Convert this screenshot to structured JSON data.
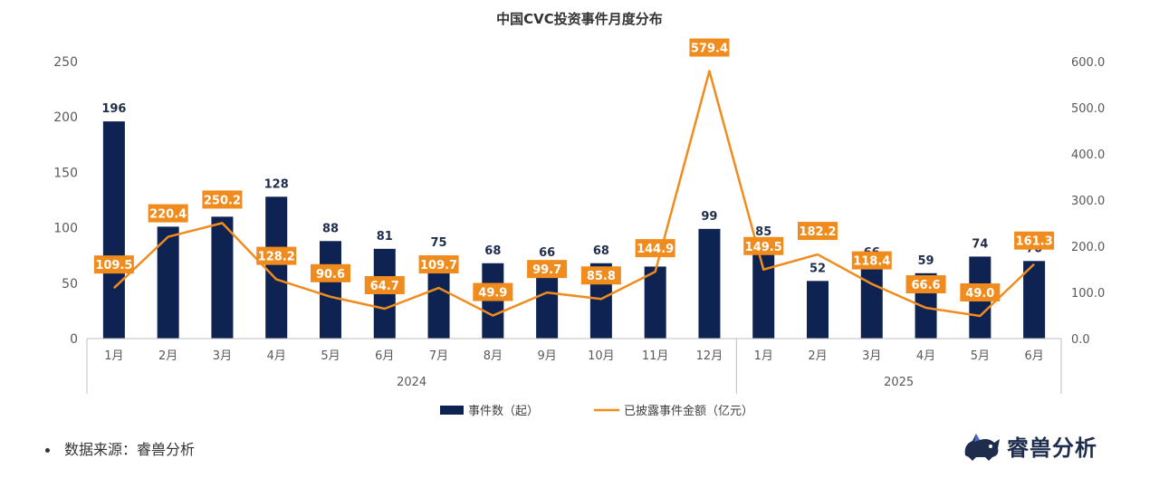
{
  "chart_data": {
    "type": "bar+line",
    "title": "中国CVC投资事件月度分布",
    "categories": [
      "1月",
      "2月",
      "3月",
      "4月",
      "5月",
      "6月",
      "7月",
      "8月",
      "9月",
      "10月",
      "11月",
      "12月",
      "1月",
      "2月",
      "3月",
      "4月",
      "5月",
      "6月"
    ],
    "groups": [
      {
        "label": "2024",
        "start": 0,
        "end": 11
      },
      {
        "label": "2025",
        "start": 12,
        "end": 17
      }
    ],
    "series": [
      {
        "name": "事件数（起）",
        "type": "bar",
        "axis": "left",
        "color": "#0e2352",
        "values": [
          196,
          101,
          110,
          128,
          88,
          81,
          75,
          68,
          66,
          68,
          65,
          99,
          85,
          52,
          66,
          59,
          74,
          70
        ],
        "labels": [
          "196",
          "101",
          "",
          "128",
          "88",
          "81",
          "75",
          "68",
          "66",
          "68",
          "",
          "99",
          "85",
          "52",
          "66",
          "59",
          "74",
          "70"
        ]
      },
      {
        "name": "已披露事件金额（亿元）",
        "type": "line",
        "axis": "right",
        "color": "#f08c1e",
        "values": [
          109.5,
          220.4,
          250.2,
          128.2,
          90.6,
          64.7,
          109.7,
          49.9,
          99.7,
          85.8,
          144.9,
          579.4,
          149.5,
          182.2,
          118.4,
          66.6,
          49.0,
          161.3
        ],
        "labels": [
          "109.5",
          "220.4",
          "250.2",
          "128.2",
          "90.6",
          "64.7",
          "109.7",
          "49.9",
          "99.7",
          "85.8",
          "144.9",
          "579.4",
          "149.5",
          "182.2",
          "118.4",
          "66.6",
          "49.0",
          "161.3"
        ]
      }
    ],
    "y_left": {
      "min": 0,
      "max": 250,
      "ticks": [
        "0",
        "50",
        "100",
        "150",
        "200",
        "250"
      ]
    },
    "y_right": {
      "min": 0,
      "max": 600,
      "ticks": [
        "0.0",
        "100.0",
        "200.0",
        "300.0",
        "400.0",
        "500.0",
        "600.0"
      ]
    },
    "grid": false,
    "legend_position": "bottom"
  },
  "footer": {
    "source": "数据来源：睿兽分析",
    "brand": "睿兽分析",
    "brand_color": "#1f2d4d",
    "brand_accent": "#4a6fd1"
  }
}
